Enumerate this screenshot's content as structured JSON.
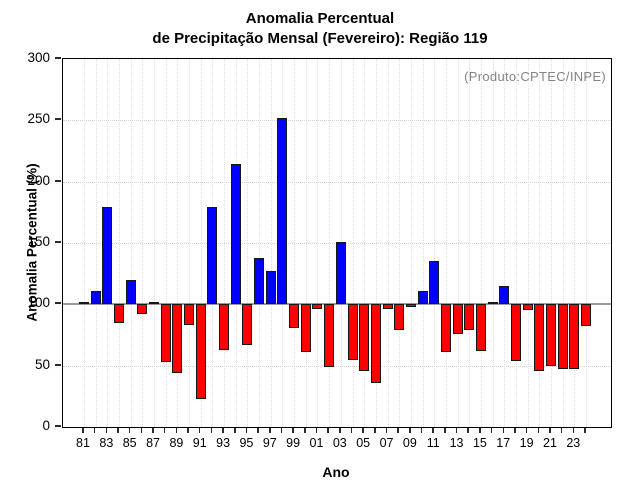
{
  "title": {
    "line1": "Anomalia Percentual",
    "line2": "de Precipitação Mensal (Fevereiro): Região 119"
  },
  "annotation": "(Produto:CPTEC/INPE)",
  "axes": {
    "ylabel": "Anomalia Percentual (%)",
    "xlabel": "Ano",
    "ytick_labels": [
      "0",
      "50",
      "100",
      "150",
      "200",
      "250",
      "300"
    ],
    "xtick_labels": [
      "81",
      "83",
      "85",
      "87",
      "89",
      "91",
      "93",
      "95",
      "97",
      "99",
      "01",
      "03",
      "05",
      "07",
      "09",
      "11",
      "13",
      "15",
      "17",
      "19",
      "21",
      "23"
    ]
  },
  "chart_data": {
    "type": "bar",
    "title": "Anomalia Percentual de Precipitação Mensal (Fevereiro): Região 119",
    "xlabel": "Ano",
    "ylabel": "Anomalia Percentual (%)",
    "ylim": [
      0,
      300
    ],
    "yticks": [
      0,
      50,
      100,
      150,
      200,
      250,
      300
    ],
    "baseline": 100,
    "grid": "dotted",
    "legend": "none",
    "colors": {
      "above_baseline": "#0000ff",
      "below_baseline": "#ff0000",
      "baseline_line": "#9a9a9a",
      "annotation_text": "#848484"
    },
    "categories": [
      "1981",
      "1982",
      "1983",
      "1984",
      "1985",
      "1986",
      "1987",
      "1988",
      "1989",
      "1990",
      "1991",
      "1992",
      "1993",
      "1994",
      "1995",
      "1996",
      "1997",
      "1998",
      "1999",
      "2000",
      "2001",
      "2002",
      "2003",
      "2004",
      "2005",
      "2006",
      "2007",
      "2008",
      "2009",
      "2010",
      "2011",
      "2012",
      "2013",
      "2014",
      "2015",
      "2016",
      "2017",
      "2018",
      "2019",
      "2020",
      "2021",
      "2022",
      "2023",
      "2024"
    ],
    "values": [
      101,
      111,
      179,
      85,
      120,
      92,
      102,
      53,
      44,
      83,
      23,
      179,
      63,
      214,
      67,
      138,
      127,
      252,
      81,
      61,
      96,
      49,
      151,
      55,
      46,
      36,
      96,
      79,
      98,
      111,
      135,
      61,
      76,
      79,
      62,
      102,
      115,
      54,
      95,
      46,
      50,
      47,
      47,
      82
    ]
  }
}
